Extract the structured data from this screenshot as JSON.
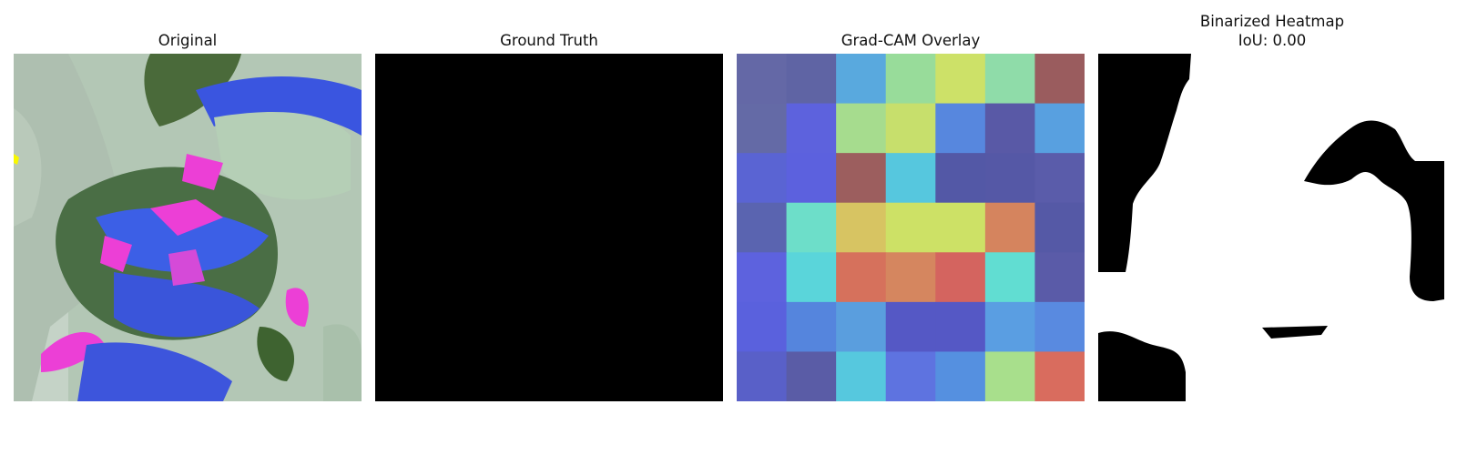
{
  "panels": [
    {
      "title": "Original"
    },
    {
      "title": "Ground Truth"
    },
    {
      "title": "Grad-CAM Overlay"
    },
    {
      "title": "Binarized Heatmap",
      "subtitle": "IoU: 0.00"
    }
  ],
  "overlay_grid": {
    "rows": 7,
    "cols": 7,
    "colors": [
      [
        "#6468a6",
        "#5f64a4",
        "#59a9de",
        "#98dc9a",
        "#cde168",
        "#8fdca9",
        "#9a5c5e"
      ],
      [
        "#646aa6",
        "#5d62dd",
        "#a6dc8e",
        "#c7df6c",
        "#5787de",
        "#5959a6",
        "#58a0e0"
      ],
      [
        "#5a64d3",
        "#5c61de",
        "#9c5e5e",
        "#56c7de",
        "#5358a6",
        "#5558a6",
        "#5a5caa"
      ],
      [
        "#5a64b0",
        "#6ddec9",
        "#d7c462",
        "#cde166",
        "#cde166",
        "#d5845e",
        "#5559a6"
      ],
      [
        "#5d62de",
        "#5ad5da",
        "#d6715c",
        "#d5865f",
        "#d4645f",
        "#61ddd2",
        "#5a5ba8"
      ],
      [
        "#5a61dd",
        "#5585dd",
        "#5a9ede",
        "#5558c5",
        "#5558c5",
        "#5a9ee2",
        "#598ae0"
      ],
      [
        "#5960c8",
        "#5a5ca6",
        "#56c8de",
        "#5e73e0",
        "#5590e0",
        "#a8df8c",
        "#d96c5e"
      ]
    ]
  },
  "colors": {
    "ground_truth_fill": "#000000",
    "mask_fill": "#000000",
    "mask_background": "#ffffff"
  }
}
